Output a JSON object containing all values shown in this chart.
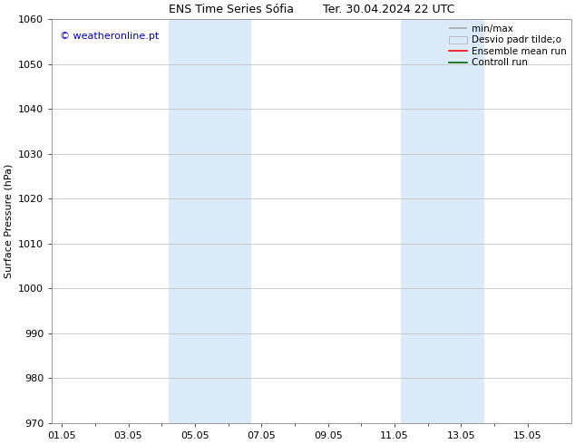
{
  "title": "ENS Time Series Sófia        Ter. 30.04.2024 22 UTC",
  "ylabel": "Surface Pressure (hPa)",
  "ylim": [
    970,
    1060
  ],
  "yticks": [
    970,
    980,
    990,
    1000,
    1010,
    1020,
    1030,
    1040,
    1050,
    1060
  ],
  "xtick_labels": [
    "01.05",
    "03.05",
    "05.05",
    "07.05",
    "09.05",
    "11.05",
    "13.05",
    "15.05"
  ],
  "xtick_positions": [
    0,
    2,
    4,
    6,
    8,
    10,
    12,
    14
  ],
  "xlim": [
    -0.3,
    15.3
  ],
  "shaded_regions": [
    {
      "start": 3.2,
      "end": 5.7,
      "color": "#daeaf8"
    },
    {
      "start": 10.2,
      "end": 12.7,
      "color": "#daeaf8"
    }
  ],
  "watermark": "© weatheronline.pt",
  "watermark_color": "#0000cc",
  "bg_color": "#ffffff",
  "grid_color": "#bbbbbb",
  "font_size": 8,
  "title_font_size": 9,
  "legend_fontsize": 7.5
}
